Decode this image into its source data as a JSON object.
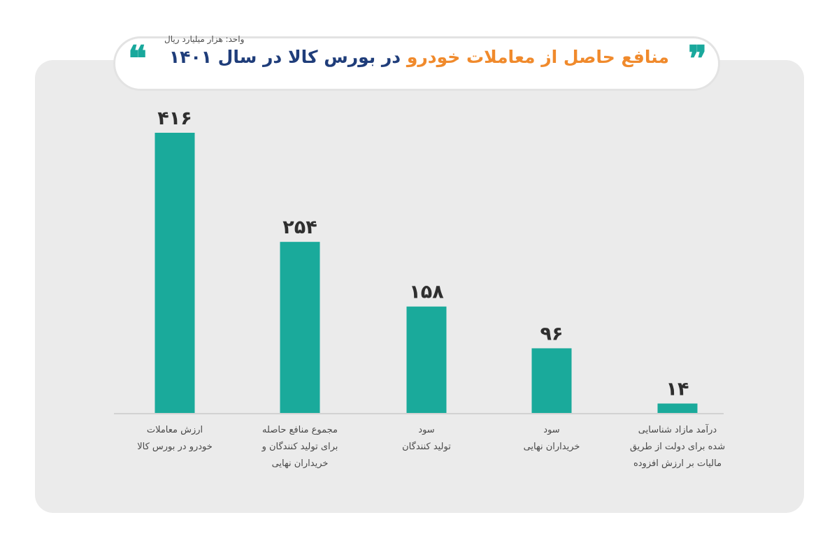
{
  "title": {
    "part1": "منافع حاصل از معاملات خودرو",
    "part2": "در بورس کالا در سال ۱۴۰۱",
    "subtitle": "واحد: هزار میلیارد ریال",
    "quote_open": "❝",
    "quote_close": "❞"
  },
  "colors": {
    "bar": "#1aaa9b",
    "accent_orange": "#f08a2c",
    "title_blue": "#1f3d7a",
    "panel": "#ebebeb"
  },
  "chart_data": {
    "type": "bar",
    "title": "منافع حاصل از معاملات خودرو در بورس کالا در سال ۱۴۰۱",
    "subtitle": "واحد: هزار میلیارد ریال",
    "categories": [
      "ارزش معاملات\nخودرو در بورس کالا",
      "مجموع منافع حاصله\nبرای تولید کنندگان و\nخریداران نهایی",
      "سود\nتولید کنندگان",
      "سود\nخریداران نهایی",
      "درآمد مازاد شناسایی\nشده برای دولت از طریق\nمالیات بر ارزش افزوده"
    ],
    "values": [
      416,
      254,
      158,
      96,
      14
    ],
    "value_labels": [
      "۴۱۶",
      "۲۵۴",
      "۱۵۸",
      "۹۶",
      "۱۴"
    ],
    "ylim": [
      0,
      416
    ],
    "grid": false,
    "legend": "none"
  }
}
